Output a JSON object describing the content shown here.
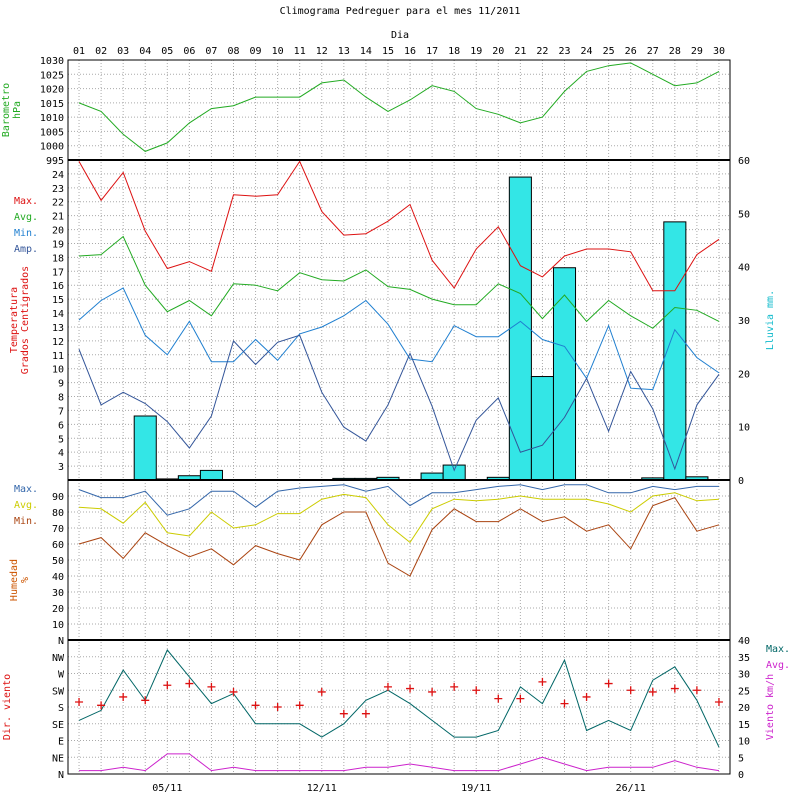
{
  "title": "Climograma Pedreguer para el mes 11/2011",
  "day_axis_label": "Dia",
  "colors": {
    "barometer": "#22aa22",
    "tmax": "#dd1111",
    "tavg": "#22aa22",
    "tmin": "#1f7fd0",
    "tamp": "#335599",
    "rain": "#33e6e6",
    "hmax": "#3366aa",
    "havg": "#cccc00",
    "hmin": "#aa4411",
    "humidity_label": "#cc5500",
    "wind_dir": "#dd1111",
    "wind_max": "#006666",
    "wind_avg": "#cc22cc"
  },
  "chart_data": [
    {
      "type": "line",
      "panel": "barometer",
      "ylabel_lines": [
        "Barometro",
        "hPa"
      ],
      "ylim": [
        995,
        1030
      ],
      "y_ticks": [
        995,
        1000,
        1005,
        1010,
        1015,
        1020,
        1025,
        1030
      ],
      "x": [
        "01",
        "02",
        "03",
        "04",
        "05",
        "06",
        "07",
        "08",
        "09",
        "10",
        "11",
        "12",
        "13",
        "14",
        "15",
        "16",
        "17",
        "18",
        "19",
        "20",
        "21",
        "22",
        "23",
        "24",
        "25",
        "26",
        "27",
        "28",
        "29",
        "30"
      ],
      "values": [
        1015,
        1012,
        1004,
        998,
        1001,
        1008,
        1013,
        1014,
        1017,
        1017,
        1017,
        1022,
        1023,
        1017,
        1012,
        1016,
        1021,
        1019,
        1013,
        1011,
        1008,
        1010,
        1019,
        1026,
        1028,
        1029,
        1025,
        1021,
        1022,
        1026
      ]
    },
    {
      "type": "line",
      "panel": "temperature",
      "ylabel_lines": [
        "Temperatura",
        "Grados Centigrados"
      ],
      "ylim": [
        2,
        25
      ],
      "y_ticks": [
        3,
        4,
        5,
        6,
        7,
        8,
        9,
        10,
        11,
        12,
        13,
        14,
        15,
        16,
        17,
        18,
        19,
        20,
        21,
        22,
        23,
        24
      ],
      "legend": [
        "Max.",
        "Avg.",
        "Min.",
        "Amp."
      ],
      "x": [
        "01",
        "02",
        "03",
        "04",
        "05",
        "06",
        "07",
        "08",
        "09",
        "10",
        "11",
        "12",
        "13",
        "14",
        "15",
        "16",
        "17",
        "18",
        "19",
        "20",
        "21",
        "22",
        "23",
        "24",
        "25",
        "26",
        "27",
        "28",
        "29",
        "30"
      ],
      "series": [
        {
          "name": "Max.",
          "values": [
            24.9,
            22.1,
            24.1,
            19.9,
            17.2,
            17.7,
            17.0,
            22.5,
            22.4,
            22.5,
            24.9,
            21.3,
            19.6,
            19.7,
            20.6,
            21.8,
            17.8,
            15.8,
            18.6,
            20.2,
            17.4,
            16.6,
            18.1,
            18.6,
            18.6,
            18.4,
            15.6,
            15.6,
            18.2,
            19.3
          ]
        },
        {
          "name": "Avg.",
          "values": [
            18.1,
            18.2,
            19.5,
            16.0,
            14.1,
            14.9,
            13.8,
            16.1,
            16.0,
            15.6,
            16.9,
            16.4,
            16.3,
            17.1,
            15.9,
            15.7,
            15.0,
            14.6,
            14.6,
            16.1,
            15.4,
            13.6,
            15.3,
            13.4,
            14.9,
            13.8,
            12.9,
            14.4,
            14.2,
            13.4
          ]
        },
        {
          "name": "Min.",
          "values": [
            13.5,
            14.9,
            15.8,
            12.4,
            11.0,
            13.4,
            10.5,
            10.5,
            12.1,
            10.6,
            12.5,
            13.0,
            13.8,
            14.9,
            13.2,
            10.7,
            10.5,
            13.1,
            12.3,
            12.3,
            13.4,
            12.1,
            11.6,
            9.3,
            13.1,
            8.6,
            8.5,
            12.8,
            10.8,
            9.7
          ]
        },
        {
          "name": "Amp.",
          "values": [
            11.4,
            7.4,
            8.3,
            7.5,
            6.2,
            4.3,
            6.6,
            12.0,
            10.3,
            11.9,
            12.4,
            8.3,
            5.8,
            4.8,
            7.4,
            11.1,
            7.3,
            2.7,
            6.3,
            7.9,
            4.0,
            4.5,
            6.5,
            9.3,
            5.5,
            9.8,
            7.1,
            2.8,
            7.4,
            9.6
          ]
        }
      ]
    },
    {
      "type": "bar",
      "panel": "rain",
      "ylabel": "Lluvia mm.",
      "ylim": [
        0,
        60
      ],
      "y_ticks": [
        0,
        10,
        20,
        30,
        40,
        50,
        60
      ],
      "x": [
        "01",
        "02",
        "03",
        "04",
        "05",
        "06",
        "07",
        "08",
        "09",
        "10",
        "11",
        "12",
        "13",
        "14",
        "15",
        "16",
        "17",
        "18",
        "19",
        "20",
        "21",
        "22",
        "23",
        "24",
        "25",
        "26",
        "27",
        "28",
        "29",
        "30"
      ],
      "values": [
        0,
        0,
        0,
        12.0,
        0.2,
        0.8,
        1.8,
        0,
        0,
        0,
        0,
        0,
        0.3,
        0.3,
        0.5,
        0,
        1.3,
        2.8,
        0,
        0.5,
        56.8,
        19.4,
        39.8,
        0,
        0,
        0,
        0.4,
        48.4,
        0.6,
        0
      ]
    },
    {
      "type": "line",
      "panel": "humidity",
      "ylabel_lines": [
        "Humedad",
        "%"
      ],
      "ylim": [
        0,
        100
      ],
      "y_ticks": [
        10,
        20,
        30,
        40,
        50,
        60,
        70,
        80,
        90
      ],
      "legend": [
        "Max.",
        "Avg.",
        "Min."
      ],
      "x": [
        "01",
        "02",
        "03",
        "04",
        "05",
        "06",
        "07",
        "08",
        "09",
        "10",
        "11",
        "12",
        "13",
        "14",
        "15",
        "16",
        "17",
        "18",
        "19",
        "20",
        "21",
        "22",
        "23",
        "24",
        "25",
        "26",
        "27",
        "28",
        "29",
        "30"
      ],
      "series": [
        {
          "name": "Max.",
          "values": [
            94,
            89,
            89,
            93,
            78,
            82,
            93,
            93,
            83,
            93,
            95,
            96,
            97,
            93,
            96,
            84,
            92,
            92,
            94,
            96,
            97,
            94,
            97,
            97,
            92,
            92,
            96,
            94,
            96,
            96
          ]
        },
        {
          "name": "Avg.",
          "values": [
            83,
            82,
            73,
            86,
            67,
            65,
            80,
            70,
            72,
            79,
            79,
            88,
            91,
            89,
            72,
            61,
            82,
            88,
            87,
            88,
            90,
            88,
            88,
            88,
            85,
            80,
            90,
            92,
            87,
            88
          ]
        },
        {
          "name": "Min.",
          "values": [
            60,
            64,
            51,
            67,
            59,
            52,
            57,
            47,
            59,
            54,
            50,
            72,
            80,
            80,
            48,
            40,
            69,
            82,
            74,
            74,
            82,
            74,
            77,
            68,
            72,
            57,
            84,
            89,
            68,
            72
          ]
        }
      ]
    },
    {
      "type": "line",
      "panel": "wind",
      "ylabel_left": "Dir. viento",
      "ylabel_right": "Viento km/h",
      "direction_labels": [
        "N",
        "NE",
        "E",
        "SE",
        "S",
        "SW",
        "W",
        "NW",
        "N"
      ],
      "speed_ylim": [
        0,
        40
      ],
      "speed_ticks": [
        0,
        5,
        10,
        15,
        20,
        25,
        30,
        35,
        40
      ],
      "legend": [
        "Max.",
        "Avg."
      ],
      "x": [
        "01",
        "02",
        "03",
        "04",
        "05",
        "06",
        "07",
        "08",
        "09",
        "10",
        "11",
        "12",
        "13",
        "14",
        "15",
        "16",
        "17",
        "18",
        "19",
        "20",
        "21",
        "22",
        "23",
        "24",
        "25",
        "26",
        "27",
        "28",
        "29",
        "30"
      ],
      "series": [
        {
          "name": "Max.",
          "values": [
            16,
            19,
            31,
            22,
            37,
            29,
            21,
            24,
            15,
            15,
            15,
            11,
            15,
            22,
            25,
            21,
            16,
            11,
            11,
            13,
            26,
            21,
            34,
            13,
            16,
            13,
            28,
            32,
            22,
            8
          ]
        },
        {
          "name": "Avg.",
          "values": [
            1,
            1,
            2,
            1,
            6,
            6,
            1,
            2,
            1,
            1,
            1,
            1,
            1,
            2,
            2,
            3,
            2,
            1,
            1,
            1,
            3,
            5,
            3,
            1,
            2,
            2,
            2,
            4,
            2,
            1
          ]
        },
        {
          "name": "Dir.",
          "values": [
            4.3,
            4.1,
            4.6,
            4.4,
            5.3,
            5.4,
            5.2,
            4.9,
            4.1,
            4.0,
            4.1,
            4.9,
            3.6,
            3.6,
            5.2,
            5.1,
            4.9,
            5.2,
            5.0,
            4.5,
            4.5,
            5.5,
            4.2,
            4.6,
            5.4,
            5.0,
            4.9,
            5.1,
            5.0,
            4.3
          ]
        }
      ]
    }
  ],
  "week_labels": [
    "05/11",
    "12/11",
    "19/11",
    "26/11"
  ]
}
